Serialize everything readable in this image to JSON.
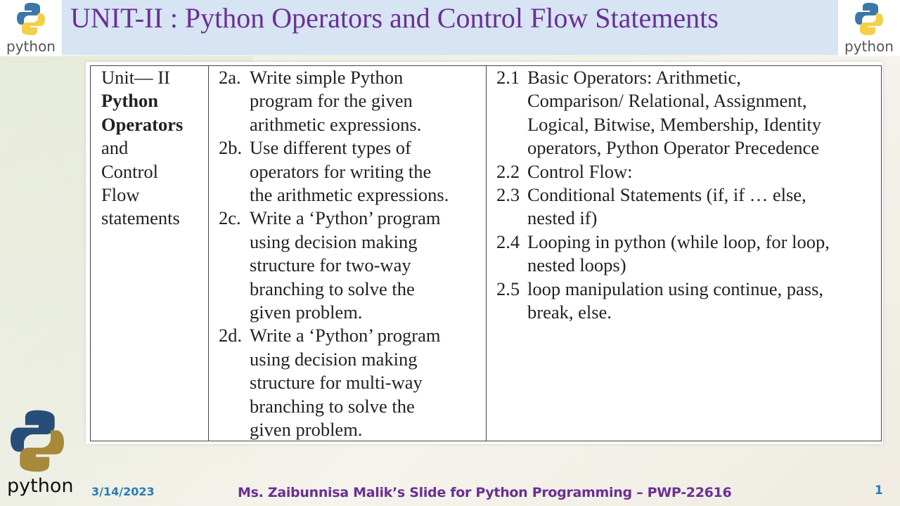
{
  "header": {
    "title": "UNIT-II : Python Operators and Control Flow Statements",
    "logo_text": "python"
  },
  "table": {
    "unit": {
      "lines": [
        {
          "t": "Unit— II",
          "bold": false
        },
        {
          "t": "Python",
          "bold": true
        },
        {
          "t": "Operators",
          "bold": true
        },
        {
          "t": "and",
          "bold": false
        },
        {
          "t": "Control",
          "bold": false
        },
        {
          "t": "Flow",
          "bold": false
        },
        {
          "t": "statements",
          "bold": false
        }
      ]
    },
    "outcomes": [
      {
        "num": "2a.",
        "lines": [
          "Write simple Python",
          "program for the given",
          "arithmetic expressions."
        ]
      },
      {
        "num": "2b.",
        "lines": [
          "Use different types of",
          "operators for writing the",
          "the arithmetic expressions."
        ]
      },
      {
        "num": "2c.",
        "lines": [
          "Write a ‘Python’ program",
          "using decision making",
          "structure for two-way",
          "branching to solve the",
          "given problem."
        ]
      },
      {
        "num": "2d.",
        "lines": [
          "Write a ‘Python’ program",
          "using decision making",
          "structure for multi-way",
          "branching to solve the",
          "given problem."
        ]
      }
    ],
    "topics": [
      {
        "num": "2.1",
        "lines": [
          "Basic Operators: Arithmetic,",
          "Comparison/ Relational, Assignment,",
          "Logical, Bitwise, Membership, Identity",
          "operators, Python Operator Precedence"
        ]
      },
      {
        "num": "2.2",
        "lines": [
          "Control Flow:"
        ]
      },
      {
        "num": "2.3",
        "lines": [
          "Conditional Statements (if, if … else,",
          "nested if)"
        ]
      },
      {
        "num": "2.4",
        "lines": [
          "Looping in python (while loop, for loop,",
          "nested loops)"
        ]
      },
      {
        "num": "2.5",
        "lines": [
          "loop manipulation using continue, pass,",
          "break, else."
        ]
      }
    ]
  },
  "footer": {
    "logo_text": "python",
    "date": "3/14/2023",
    "credit": "Ms. Zaibunnisa Malik’s Slide for Python Programming – PWP-22616",
    "page": "1"
  },
  "colors": {
    "title": "#6b2f93",
    "header_band": "#d6e4f4",
    "footer_accent": "#2a7ab8"
  }
}
